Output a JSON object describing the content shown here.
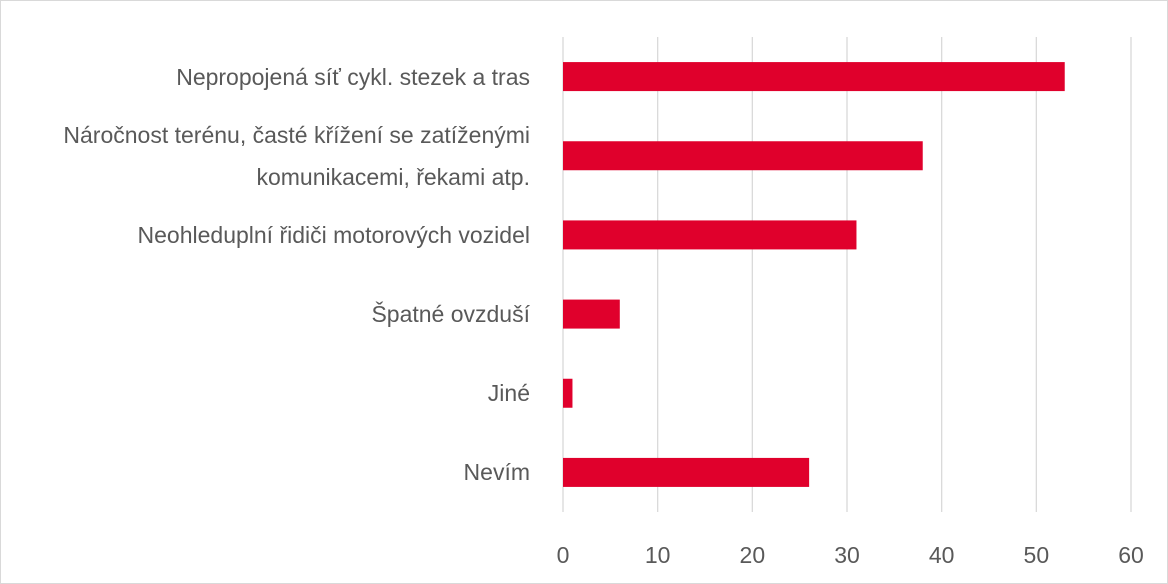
{
  "chart_data": {
    "type": "bar",
    "orientation": "horizontal",
    "categories": [
      "Nepropojená síť cykl. stezek a tras",
      "Náročnost terénu, časté křížení se zatíženými komunikacemi, řekami atp.",
      "Neohleduplní řidiči motorových vozidel",
      "Špatné ovzduší",
      "Jiné",
      "Nevím"
    ],
    "values": [
      53,
      38,
      31,
      6,
      1,
      26
    ],
    "color": "#e0002c",
    "xlim": [
      0,
      60
    ],
    "xticks": [
      0,
      10,
      20,
      30,
      40,
      50,
      60
    ],
    "grid": true
  }
}
